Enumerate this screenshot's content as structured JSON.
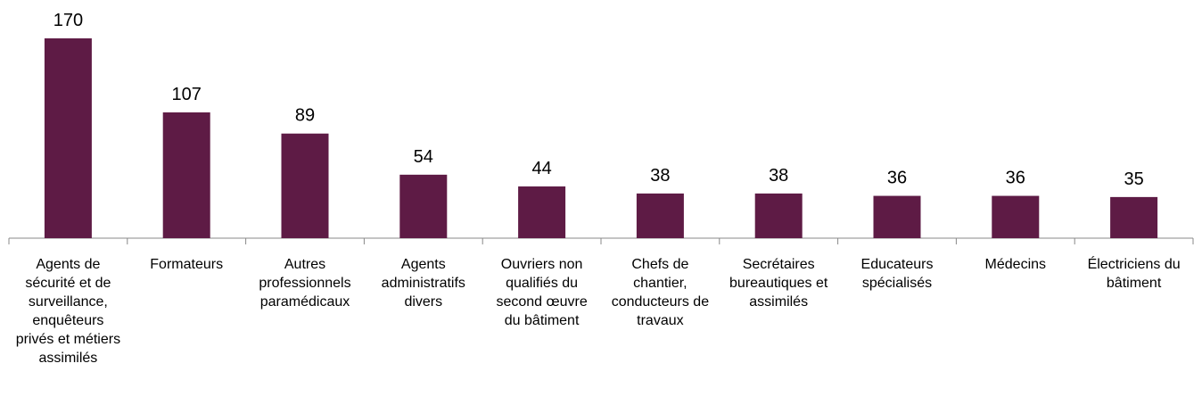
{
  "chart_data": {
    "type": "bar",
    "categories": [
      "Agents de sécurité et de surveillance, enquêteurs privés et métiers assimilés",
      "Formateurs",
      "Autres professionnels paramédicaux",
      "Agents administratifs divers",
      "Ouvriers non qualifiés du second œuvre du bâtiment",
      "Chefs de chantier, conducteurs de travaux",
      "Secrétaires bureautiques et assimilés",
      "Educateurs spécialisés",
      "Médecins",
      "Électriciens du bâtiment"
    ],
    "values": [
      170,
      107,
      89,
      54,
      44,
      38,
      38,
      36,
      36,
      35
    ],
    "color": "#5e1b45"
  }
}
